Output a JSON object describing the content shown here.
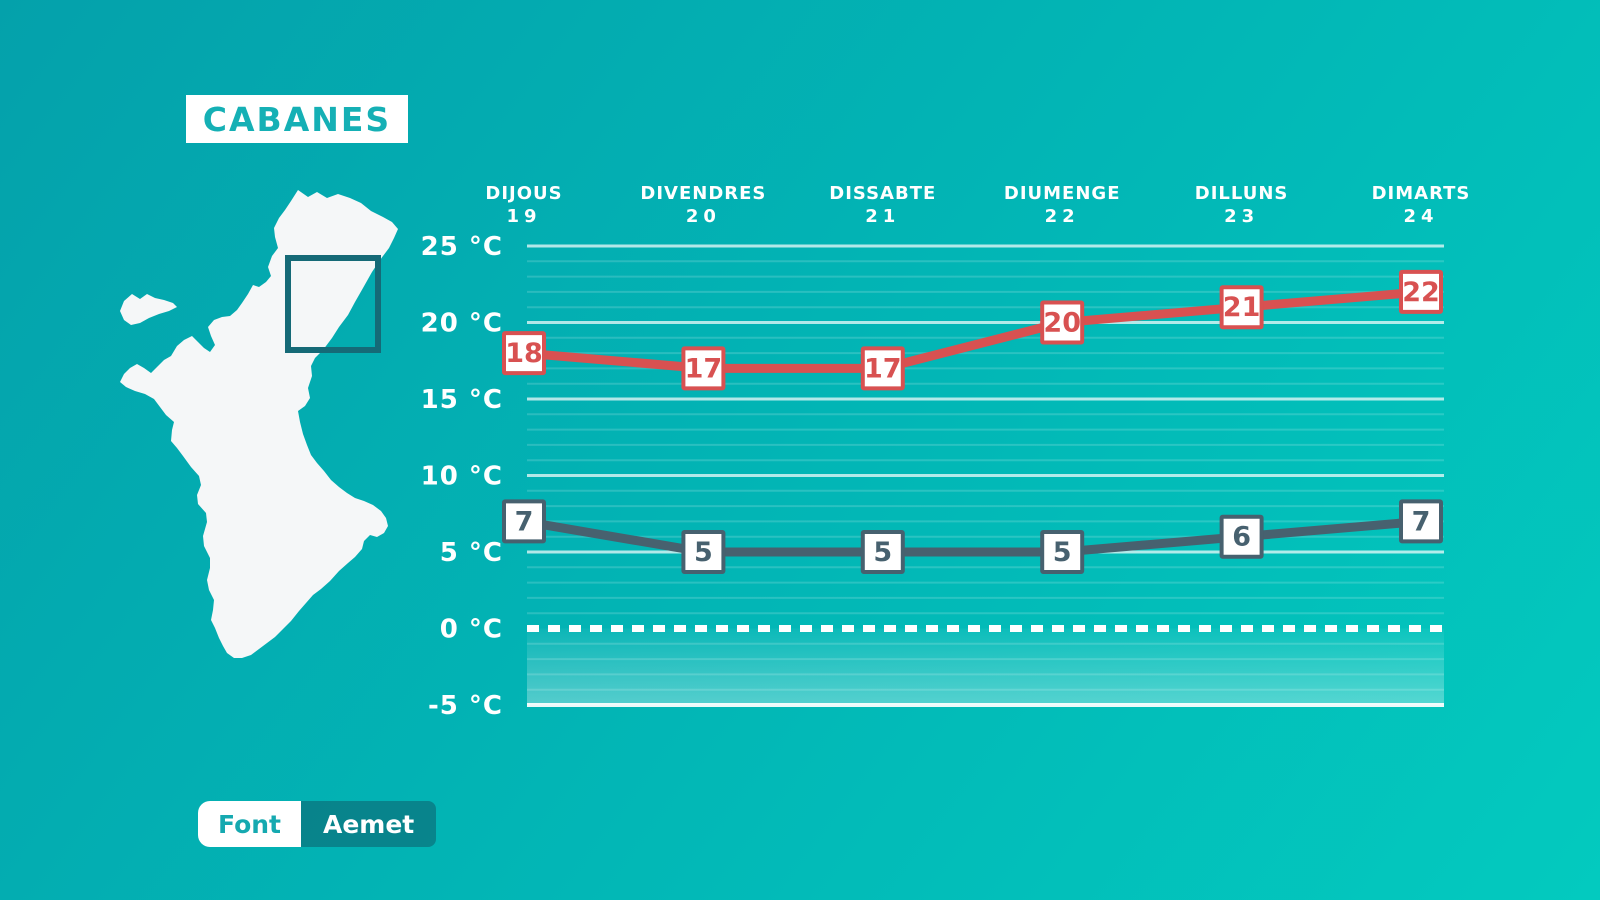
{
  "title": "CABANES",
  "source": {
    "label": "Font",
    "value": "Aemet"
  },
  "colors": {
    "background_start": "#04a1ab",
    "background_end": "#03cabf",
    "title_text": "#15b0b5",
    "source_label_text": "#15a9b0",
    "max_line": "#d85151",
    "min_line": "#47616f",
    "axis_text": "#ffffff",
    "map_fill": "#f5f7f8",
    "map_box_stroke": "#156a77"
  },
  "chart_data": {
    "type": "line",
    "categories": [
      {
        "day": "DIJOUS",
        "date": "19"
      },
      {
        "day": "DIVENDRES",
        "date": "20"
      },
      {
        "day": "DISSABTE",
        "date": "21"
      },
      {
        "day": "DIUMENGE",
        "date": "22"
      },
      {
        "day": "DILLUNS",
        "date": "23"
      },
      {
        "day": "DIMARTS",
        "date": "24"
      }
    ],
    "series": [
      {
        "name": "max-temperature",
        "color": "#d85151",
        "values": [
          18,
          17,
          17,
          20,
          21,
          22
        ]
      },
      {
        "name": "min-temperature",
        "color": "#47616f",
        "values": [
          7,
          5,
          5,
          5,
          6,
          7
        ]
      }
    ],
    "y_axis": {
      "min": -5,
      "max": 25,
      "tick_step": 5,
      "unit": "°C",
      "tick_labels": [
        "25 °C",
        "20 °C",
        "15 °C",
        "10 °C",
        "5 °C",
        "0 °C",
        "-5 °C"
      ]
    },
    "grid": {
      "major_step": 5,
      "minor_step": 1,
      "zero_line_dashed": true,
      "below_zero_shading": true
    },
    "legend_position": "none"
  }
}
